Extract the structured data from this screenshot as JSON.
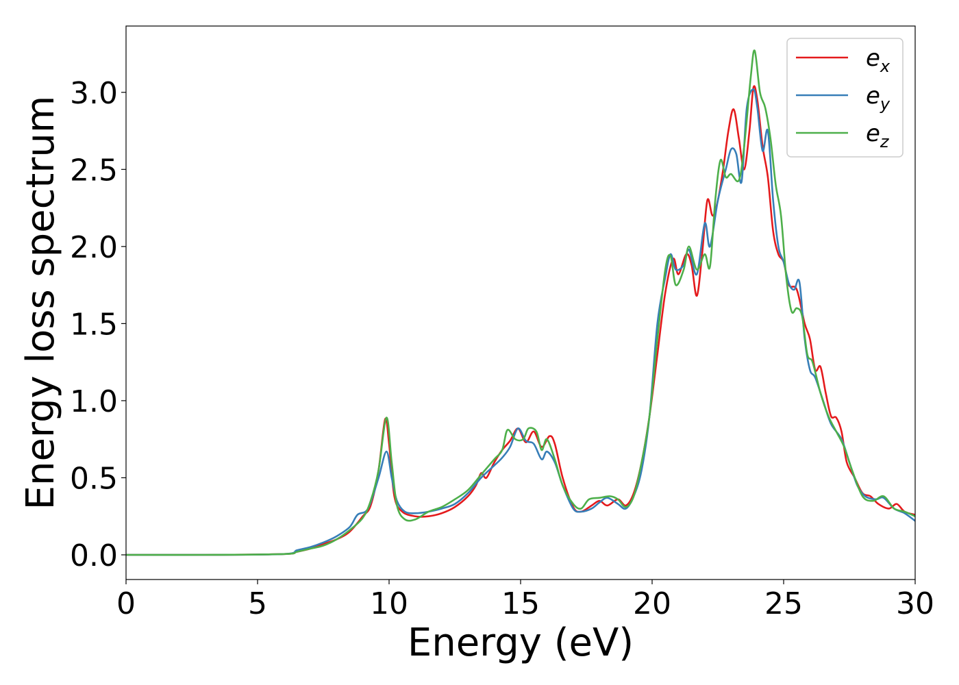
{
  "chart_data": {
    "type": "line",
    "title": "",
    "xlabel": "Energy (eV)",
    "ylabel": "Energy loss spectrum",
    "xlim": [
      0,
      30
    ],
    "ylim": [
      -0.16,
      3.43
    ],
    "xticks": [
      0,
      5,
      10,
      15,
      20,
      25,
      30
    ],
    "xtick_labels": [
      "0",
      "5",
      "10",
      "15",
      "20",
      "25",
      "30"
    ],
    "yticks": [
      0.0,
      0.5,
      1.0,
      1.5,
      2.0,
      2.5,
      3.0
    ],
    "ytick_labels": [
      "0.0",
      "0.5",
      "1.0",
      "1.5",
      "2.0",
      "2.5",
      "3.0"
    ],
    "grid": false,
    "legend_position": "top-right",
    "series": [
      {
        "name": "e_x",
        "legend_base": "e",
        "legend_sub": "x",
        "color": "#e41a1c",
        "points": [
          [
            0,
            0.0
          ],
          [
            3,
            0.0
          ],
          [
            6,
            0.005
          ],
          [
            6.5,
            0.02
          ],
          [
            7,
            0.04
          ],
          [
            7.5,
            0.07
          ],
          [
            8,
            0.1
          ],
          [
            8.5,
            0.15
          ],
          [
            9,
            0.25
          ],
          [
            9.3,
            0.32
          ],
          [
            9.6,
            0.55
          ],
          [
            9.85,
            0.88
          ],
          [
            10.0,
            0.72
          ],
          [
            10.2,
            0.38
          ],
          [
            10.5,
            0.28
          ],
          [
            11,
            0.25
          ],
          [
            11.5,
            0.25
          ],
          [
            12,
            0.27
          ],
          [
            12.5,
            0.31
          ],
          [
            13,
            0.38
          ],
          [
            13.3,
            0.45
          ],
          [
            13.5,
            0.53
          ],
          [
            13.7,
            0.5
          ],
          [
            14,
            0.6
          ],
          [
            14.3,
            0.68
          ],
          [
            14.6,
            0.74
          ],
          [
            14.9,
            0.82
          ],
          [
            15.2,
            0.73
          ],
          [
            15.5,
            0.8
          ],
          [
            15.8,
            0.7
          ],
          [
            16.1,
            0.77
          ],
          [
            16.3,
            0.72
          ],
          [
            16.6,
            0.5
          ],
          [
            17,
            0.31
          ],
          [
            17.3,
            0.28
          ],
          [
            17.7,
            0.32
          ],
          [
            18,
            0.35
          ],
          [
            18.3,
            0.32
          ],
          [
            18.7,
            0.36
          ],
          [
            19,
            0.32
          ],
          [
            19.3,
            0.4
          ],
          [
            19.6,
            0.6
          ],
          [
            19.9,
            0.9
          ],
          [
            20.2,
            1.3
          ],
          [
            20.5,
            1.7
          ],
          [
            20.8,
            1.92
          ],
          [
            21.0,
            1.82
          ],
          [
            21.3,
            1.95
          ],
          [
            21.5,
            1.88
          ],
          [
            21.7,
            1.68
          ],
          [
            21.9,
            1.95
          ],
          [
            22.1,
            2.3
          ],
          [
            22.3,
            2.2
          ],
          [
            22.5,
            2.3
          ],
          [
            22.7,
            2.5
          ],
          [
            22.9,
            2.75
          ],
          [
            23.1,
            2.89
          ],
          [
            23.3,
            2.7
          ],
          [
            23.5,
            2.5
          ],
          [
            23.7,
            2.75
          ],
          [
            23.85,
            3.03
          ],
          [
            24.0,
            2.95
          ],
          [
            24.2,
            2.65
          ],
          [
            24.4,
            2.45
          ],
          [
            24.6,
            2.1
          ],
          [
            24.8,
            1.95
          ],
          [
            25.0,
            1.9
          ],
          [
            25.2,
            1.75
          ],
          [
            25.5,
            1.72
          ],
          [
            25.8,
            1.5
          ],
          [
            26.0,
            1.4
          ],
          [
            26.2,
            1.2
          ],
          [
            26.4,
            1.22
          ],
          [
            26.6,
            1.05
          ],
          [
            26.8,
            0.9
          ],
          [
            27.0,
            0.89
          ],
          [
            27.2,
            0.8
          ],
          [
            27.4,
            0.6
          ],
          [
            27.7,
            0.5
          ],
          [
            28.0,
            0.4
          ],
          [
            28.3,
            0.38
          ],
          [
            28.6,
            0.33
          ],
          [
            29.0,
            0.3
          ],
          [
            29.3,
            0.33
          ],
          [
            29.6,
            0.28
          ],
          [
            30,
            0.26
          ]
        ]
      },
      {
        "name": "e_y",
        "legend_base": "e",
        "legend_sub": "y",
        "color": "#377eb8",
        "points": [
          [
            0,
            0.0
          ],
          [
            3,
            0.0
          ],
          [
            6,
            0.005
          ],
          [
            6.5,
            0.03
          ],
          [
            7,
            0.05
          ],
          [
            7.5,
            0.08
          ],
          [
            8,
            0.12
          ],
          [
            8.5,
            0.18
          ],
          [
            8.8,
            0.26
          ],
          [
            9.2,
            0.3
          ],
          [
            9.6,
            0.5
          ],
          [
            9.9,
            0.67
          ],
          [
            10.1,
            0.5
          ],
          [
            10.3,
            0.35
          ],
          [
            10.6,
            0.28
          ],
          [
            11,
            0.27
          ],
          [
            11.5,
            0.28
          ],
          [
            12,
            0.3
          ],
          [
            12.5,
            0.33
          ],
          [
            13,
            0.4
          ],
          [
            13.5,
            0.5
          ],
          [
            14,
            0.58
          ],
          [
            14.3,
            0.63
          ],
          [
            14.6,
            0.7
          ],
          [
            14.9,
            0.82
          ],
          [
            15.2,
            0.74
          ],
          [
            15.5,
            0.72
          ],
          [
            15.8,
            0.62
          ],
          [
            16.0,
            0.67
          ],
          [
            16.3,
            0.6
          ],
          [
            16.6,
            0.45
          ],
          [
            17,
            0.3
          ],
          [
            17.3,
            0.28
          ],
          [
            17.7,
            0.3
          ],
          [
            18,
            0.34
          ],
          [
            18.3,
            0.37
          ],
          [
            18.7,
            0.33
          ],
          [
            19,
            0.3
          ],
          [
            19.3,
            0.38
          ],
          [
            19.6,
            0.55
          ],
          [
            19.9,
            0.9
          ],
          [
            20.2,
            1.5
          ],
          [
            20.5,
            1.8
          ],
          [
            20.7,
            1.95
          ],
          [
            20.9,
            1.85
          ],
          [
            21.2,
            1.88
          ],
          [
            21.4,
            1.98
          ],
          [
            21.7,
            1.82
          ],
          [
            22.0,
            2.15
          ],
          [
            22.2,
            2.0
          ],
          [
            22.5,
            2.3
          ],
          [
            22.8,
            2.5
          ],
          [
            23.0,
            2.63
          ],
          [
            23.2,
            2.6
          ],
          [
            23.4,
            2.42
          ],
          [
            23.6,
            2.9
          ],
          [
            23.85,
            3.02
          ],
          [
            24.0,
            2.9
          ],
          [
            24.2,
            2.62
          ],
          [
            24.4,
            2.75
          ],
          [
            24.6,
            2.3
          ],
          [
            24.8,
            2.0
          ],
          [
            25.0,
            1.9
          ],
          [
            25.2,
            1.76
          ],
          [
            25.4,
            1.72
          ],
          [
            25.6,
            1.77
          ],
          [
            25.8,
            1.4
          ],
          [
            26.0,
            1.2
          ],
          [
            26.2,
            1.15
          ],
          [
            26.5,
            1.0
          ],
          [
            26.8,
            0.85
          ],
          [
            27.2,
            0.75
          ],
          [
            27.5,
            0.6
          ],
          [
            27.8,
            0.45
          ],
          [
            28.1,
            0.38
          ],
          [
            28.5,
            0.36
          ],
          [
            28.8,
            0.37
          ],
          [
            29.2,
            0.3
          ],
          [
            29.6,
            0.27
          ],
          [
            30,
            0.22
          ]
        ]
      },
      {
        "name": "e_z",
        "legend_base": "e",
        "legend_sub": "z",
        "color": "#4daf4a",
        "points": [
          [
            0,
            0.0
          ],
          [
            3,
            0.0
          ],
          [
            6,
            0.005
          ],
          [
            6.5,
            0.02
          ],
          [
            7,
            0.04
          ],
          [
            7.5,
            0.06
          ],
          [
            8,
            0.1
          ],
          [
            8.5,
            0.16
          ],
          [
            9,
            0.24
          ],
          [
            9.3,
            0.35
          ],
          [
            9.6,
            0.55
          ],
          [
            9.9,
            0.89
          ],
          [
            10.1,
            0.6
          ],
          [
            10.3,
            0.32
          ],
          [
            10.6,
            0.23
          ],
          [
            11,
            0.23
          ],
          [
            11.5,
            0.28
          ],
          [
            12,
            0.31
          ],
          [
            12.5,
            0.36
          ],
          [
            13,
            0.42
          ],
          [
            13.5,
            0.52
          ],
          [
            14,
            0.62
          ],
          [
            14.3,
            0.68
          ],
          [
            14.5,
            0.81
          ],
          [
            14.8,
            0.75
          ],
          [
            15.1,
            0.75
          ],
          [
            15.3,
            0.82
          ],
          [
            15.6,
            0.8
          ],
          [
            15.8,
            0.68
          ],
          [
            16.0,
            0.75
          ],
          [
            16.3,
            0.62
          ],
          [
            16.6,
            0.45
          ],
          [
            17,
            0.33
          ],
          [
            17.3,
            0.3
          ],
          [
            17.6,
            0.36
          ],
          [
            18,
            0.37
          ],
          [
            18.4,
            0.38
          ],
          [
            18.7,
            0.36
          ],
          [
            19,
            0.31
          ],
          [
            19.3,
            0.38
          ],
          [
            19.6,
            0.6
          ],
          [
            19.9,
            0.9
          ],
          [
            20.2,
            1.4
          ],
          [
            20.5,
            1.85
          ],
          [
            20.7,
            1.94
          ],
          [
            20.9,
            1.75
          ],
          [
            21.2,
            1.85
          ],
          [
            21.4,
            2.0
          ],
          [
            21.7,
            1.85
          ],
          [
            22.0,
            1.95
          ],
          [
            22.2,
            1.87
          ],
          [
            22.4,
            2.3
          ],
          [
            22.6,
            2.56
          ],
          [
            22.8,
            2.45
          ],
          [
            23.0,
            2.47
          ],
          [
            23.3,
            2.43
          ],
          [
            23.5,
            2.65
          ],
          [
            23.75,
            3.1
          ],
          [
            23.9,
            3.27
          ],
          [
            24.1,
            3.0
          ],
          [
            24.3,
            2.9
          ],
          [
            24.5,
            2.7
          ],
          [
            24.7,
            2.4
          ],
          [
            24.9,
            2.2
          ],
          [
            25.1,
            1.8
          ],
          [
            25.3,
            1.58
          ],
          [
            25.5,
            1.6
          ],
          [
            25.7,
            1.55
          ],
          [
            25.9,
            1.3
          ],
          [
            26.1,
            1.25
          ],
          [
            26.4,
            1.05
          ],
          [
            26.7,
            0.9
          ],
          [
            27.0,
            0.8
          ],
          [
            27.3,
            0.7
          ],
          [
            27.6,
            0.55
          ],
          [
            28.0,
            0.38
          ],
          [
            28.4,
            0.35
          ],
          [
            28.8,
            0.38
          ],
          [
            29.2,
            0.3
          ],
          [
            29.6,
            0.28
          ],
          [
            30,
            0.25
          ]
        ]
      }
    ]
  }
}
